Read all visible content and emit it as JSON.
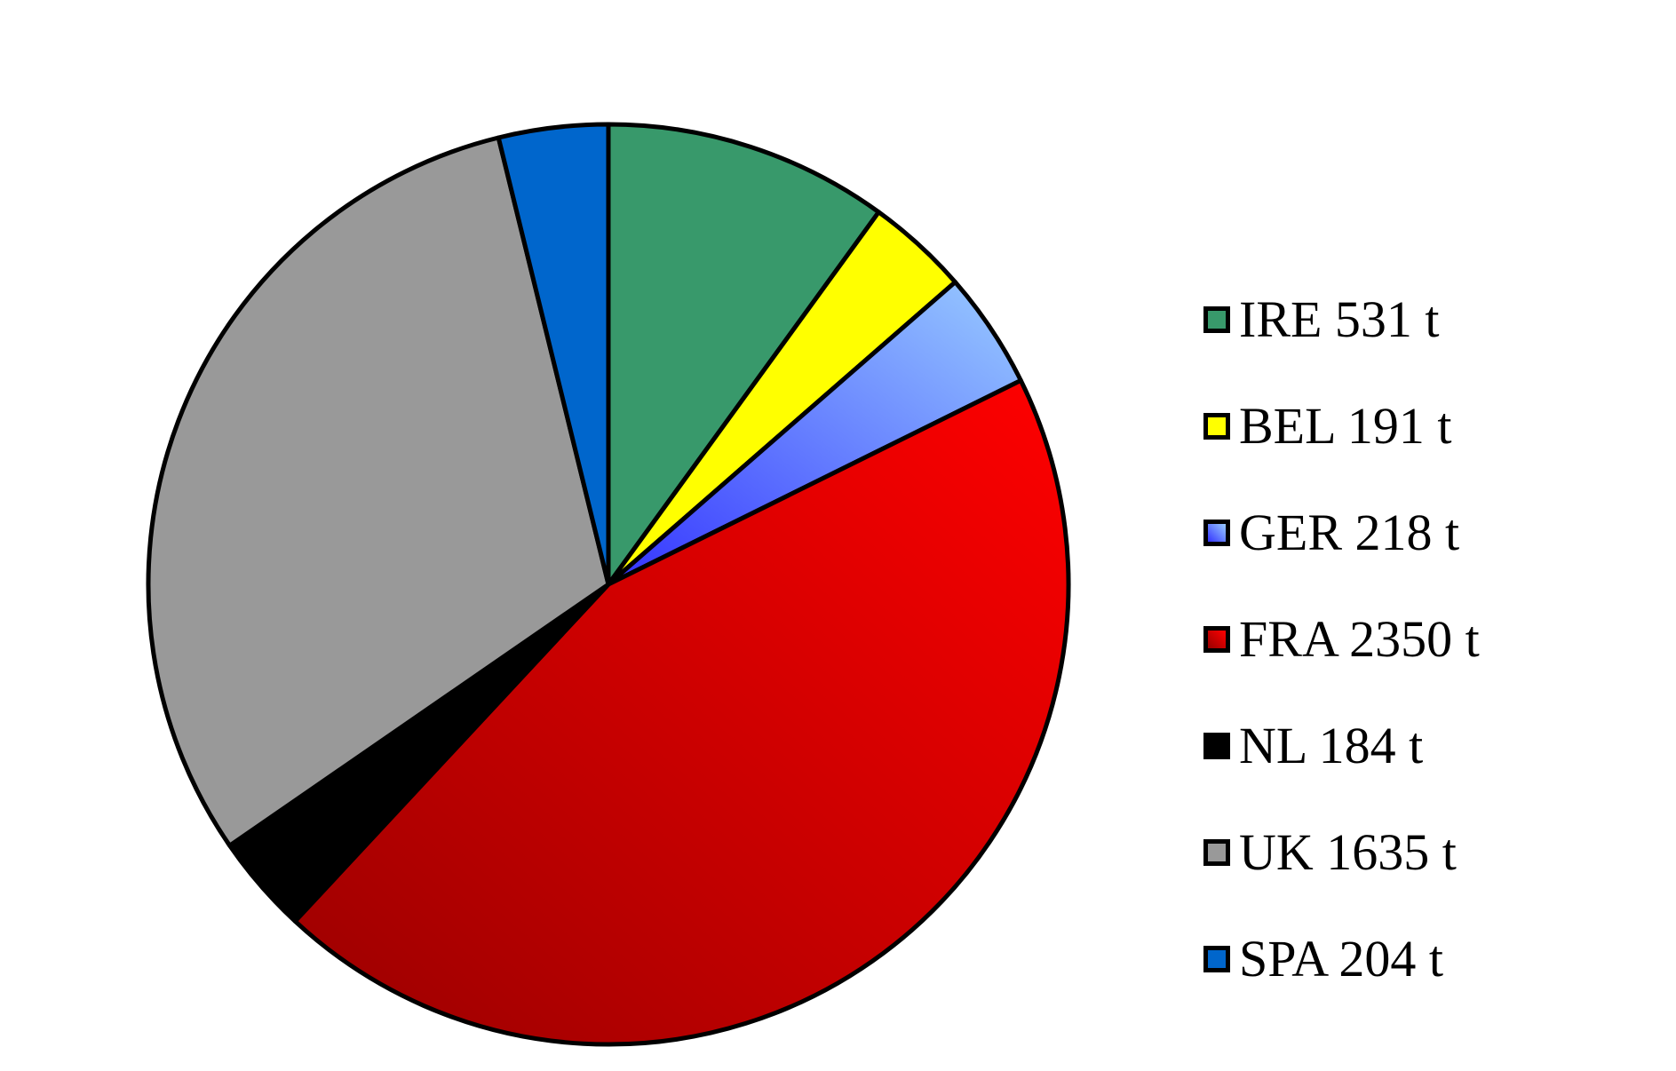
{
  "chart_data": {
    "type": "pie",
    "title": "",
    "start_angle_deg": 0,
    "direction": "clockwise",
    "slices": [
      {
        "label": "IRE 531 t",
        "category": "IRE",
        "value": 531,
        "unit": "t",
        "color": "#38996B",
        "color_dark": "#38996B"
      },
      {
        "label": "BEL 191 t",
        "category": "BEL",
        "value": 191,
        "unit": "t",
        "color": "#FFFF00",
        "color_dark": "#FFFF00"
      },
      {
        "label": "GER 218 t",
        "category": "GER",
        "value": 218,
        "unit": "t",
        "color": "#99CCFF",
        "color_dark": "#3333FF"
      },
      {
        "label": "FRA 2350 t",
        "category": "FRA",
        "value": 2350,
        "unit": "t",
        "color": "#FF0000",
        "color_dark": "#990000"
      },
      {
        "label": "NL 184 t",
        "category": "NL",
        "value": 184,
        "unit": "t",
        "color": "#000000",
        "color_dark": "#000000"
      },
      {
        "label": "UK 1635 t",
        "category": "UK",
        "value": 1635,
        "unit": "t",
        "color": "#999999",
        "color_dark": "#999999"
      },
      {
        "label": "SPA 204 t",
        "category": "SPA",
        "value": 204,
        "unit": "t",
        "color": "#0066CC",
        "color_dark": "#0066CC"
      }
    ],
    "legend": {
      "position": "right"
    }
  }
}
